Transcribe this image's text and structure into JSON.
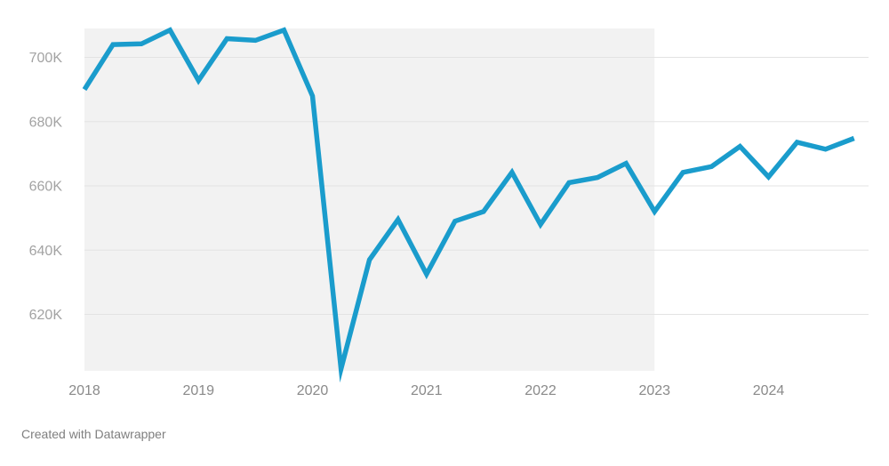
{
  "chart_data": {
    "type": "line",
    "title": "",
    "xlabel": "",
    "ylabel": "",
    "ylim": [
      602000,
      709000
    ],
    "xlim": [
      2018.0,
      2024.95
    ],
    "y_ticks": [
      {
        "value": 620000,
        "label": "620K"
      },
      {
        "value": 640000,
        "label": "640K"
      },
      {
        "value": 660000,
        "label": "660K"
      },
      {
        "value": 680000,
        "label": "680K"
      },
      {
        "value": 700000,
        "label": "700K"
      }
    ],
    "x_ticks": [
      {
        "value": 2018,
        "label": "2018"
      },
      {
        "value": 2019,
        "label": "2019"
      },
      {
        "value": 2020,
        "label": "2020"
      },
      {
        "value": 2021,
        "label": "2021"
      },
      {
        "value": 2022,
        "label": "2022"
      },
      {
        "value": 2023,
        "label": "2023"
      },
      {
        "value": 2024,
        "label": "2024"
      }
    ],
    "shaded_range": {
      "x_start": 2018,
      "x_end": 2023,
      "color": "#f2f2f2"
    },
    "grid": true,
    "series": [
      {
        "color": "#1a9ccc",
        "points": [
          {
            "x": 2018.0,
            "y": 690000
          },
          {
            "x": 2018.25,
            "y": 704000
          },
          {
            "x": 2018.5,
            "y": 704200
          },
          {
            "x": 2018.75,
            "y": 708500
          },
          {
            "x": 2019.0,
            "y": 692800
          },
          {
            "x": 2019.25,
            "y": 705800
          },
          {
            "x": 2019.5,
            "y": 705300
          },
          {
            "x": 2019.75,
            "y": 708500
          },
          {
            "x": 2020.0,
            "y": 688000
          },
          {
            "x": 2020.25,
            "y": 603000
          },
          {
            "x": 2020.5,
            "y": 637000
          },
          {
            "x": 2020.75,
            "y": 649500
          },
          {
            "x": 2021.0,
            "y": 632500
          },
          {
            "x": 2021.25,
            "y": 649000
          },
          {
            "x": 2021.5,
            "y": 652000
          },
          {
            "x": 2021.75,
            "y": 664200
          },
          {
            "x": 2022.0,
            "y": 648000
          },
          {
            "x": 2022.25,
            "y": 661000
          },
          {
            "x": 2022.5,
            "y": 662600
          },
          {
            "x": 2022.75,
            "y": 667000
          },
          {
            "x": 2023.0,
            "y": 652000
          },
          {
            "x": 2023.25,
            "y": 664200
          },
          {
            "x": 2023.5,
            "y": 666000
          },
          {
            "x": 2023.75,
            "y": 672300
          },
          {
            "x": 2024.0,
            "y": 662800
          },
          {
            "x": 2024.25,
            "y": 673600
          },
          {
            "x": 2024.5,
            "y": 671400
          },
          {
            "x": 2024.75,
            "y": 674800
          }
        ]
      }
    ]
  },
  "footer": {
    "text": "Created with Datawrapper"
  }
}
